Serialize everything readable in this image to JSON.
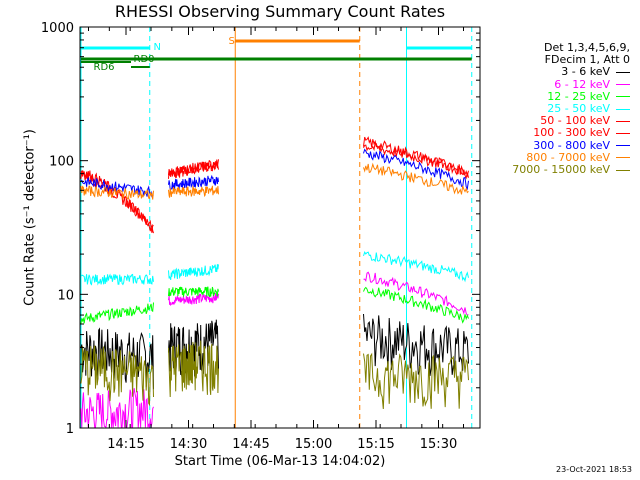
{
  "chart_data": {
    "type": "line",
    "title": "RHESSI Observing Summary Count Rates",
    "xlabel": "Start Time (06-Mar-13 14:04:02)",
    "ylabel": "Count Rate (s⁻¹ detector⁻¹)",
    "yscale": "log",
    "ylim": [
      1,
      1000
    ],
    "xlim_minutes": [
      14.066,
      15.666
    ],
    "x_tick_labels": [
      "14:15",
      "14:30",
      "14:45",
      "15:00",
      "15:15",
      "15:30"
    ],
    "x_tick_hours": [
      14.25,
      14.5,
      14.75,
      15.0,
      15.25,
      15.5
    ],
    "y_tick_labels": [
      "1",
      "10",
      "100",
      "1000"
    ],
    "y_tick_values": [
      1,
      10,
      100,
      1000
    ],
    "legend_header": [
      "Det 1,3,4,5,6,9,",
      "FDecim 1, Att 0"
    ],
    "series": [
      {
        "name": "3 - 6 keV",
        "color": "#000000",
        "segments": [
          [
            14.07,
            4.0,
            14.36,
            3.5
          ],
          [
            14.42,
            4.2,
            14.62,
            4.5
          ],
          [
            15.2,
            5.0,
            15.62,
            3.8
          ]
        ]
      },
      {
        "name": "6 - 12 keV",
        "color": "#ff00ff",
        "segments": [
          [
            14.07,
            1.3,
            14.36,
            1.4
          ],
          [
            14.42,
            9.0,
            14.62,
            9.5
          ],
          [
            15.2,
            14.0,
            15.62,
            7.5
          ]
        ]
      },
      {
        "name": "12 - 25 keV",
        "color": "#00ff00",
        "segments": [
          [
            14.07,
            6.5,
            14.36,
            8.0
          ],
          [
            14.42,
            10.5,
            14.62,
            10.5
          ],
          [
            15.2,
            11.0,
            15.62,
            6.5
          ]
        ]
      },
      {
        "name": "25 - 50 keV",
        "color": "#00ffff",
        "segments": [
          [
            14.07,
            13.0,
            14.36,
            13.0
          ],
          [
            14.42,
            14.0,
            14.62,
            15.5
          ],
          [
            15.2,
            20.0,
            15.62,
            13.5
          ]
        ]
      },
      {
        "name": "50 - 100 keV",
        "color": "#ff0000",
        "segments": [
          [
            14.07,
            80.0,
            14.36,
            30.0
          ],
          [
            14.42,
            80.0,
            14.62,
            92.0
          ],
          [
            15.2,
            130.0,
            15.62,
            82.0
          ]
        ]
      },
      {
        "name": "100 - 300 keV",
        "color": "#ff0000",
        "segments": [
          [
            14.07,
            85.0,
            14.36,
            30.0
          ],
          [
            14.42,
            82.0,
            14.62,
            95.0
          ],
          [
            15.2,
            140.0,
            15.62,
            80.0
          ]
        ]
      },
      {
        "name": "300 - 800 keV",
        "color": "#0000ff",
        "segments": [
          [
            14.07,
            70.0,
            14.36,
            58.0
          ],
          [
            14.42,
            66.0,
            14.62,
            72.0
          ],
          [
            15.2,
            115.0,
            15.62,
            67.0
          ]
        ]
      },
      {
        "name": "800 - 7000 keV",
        "color": "#ff8000",
        "segments": [
          [
            14.07,
            60.0,
            14.36,
            55.0
          ],
          [
            14.42,
            58.0,
            14.62,
            60.0
          ],
          [
            15.2,
            90.0,
            15.62,
            58.0
          ]
        ]
      },
      {
        "name": "7000 - 15000 keV",
        "color": "#808000",
        "segments": [
          [
            14.07,
            3.0,
            14.36,
            2.5
          ],
          [
            14.42,
            3.0,
            14.62,
            3.2
          ],
          [
            15.2,
            2.5,
            15.62,
            2.5
          ]
        ]
      }
    ],
    "legend_colors": [
      "#000000",
      "#ff00ff",
      "#00ff00",
      "#00ffff",
      "#ff0000",
      "#ff0000",
      "#0000ff",
      "#ff8000",
      "#808000"
    ],
    "legend_labels": [
      "3 - 6 keV",
      "6 - 12 keV",
      "12 - 25 keV",
      "25 - 50 keV",
      "50 - 100 keV",
      "100 - 300 keV",
      "300 - 800 keV",
      "800 - 7000 keV",
      "7000 - 15000 keV"
    ],
    "annotations": [
      {
        "text": "N",
        "color": "#00ffff"
      },
      {
        "text": "S",
        "color": "#ff8000"
      },
      {
        "text": "RD0",
        "color": "#008000"
      },
      {
        "text": "RD6",
        "color": "#008000"
      }
    ],
    "vertical_lines": [
      {
        "hour": 14.07,
        "color": "#00ffff",
        "style": "solid"
      },
      {
        "hour": 14.345,
        "color": "#00ffff",
        "style": "dashed"
      },
      {
        "hour": 14.687,
        "color": "#ff8000",
        "style": "solid"
      },
      {
        "hour": 15.185,
        "color": "#ff8000",
        "style": "dashed"
      },
      {
        "hour": 15.372,
        "color": "#00ffff",
        "style": "solid"
      },
      {
        "hour": 15.633,
        "color": "#00ffff",
        "style": "dashed"
      }
    ]
  },
  "footer_stamp": "23-Oct-2021 18:53"
}
